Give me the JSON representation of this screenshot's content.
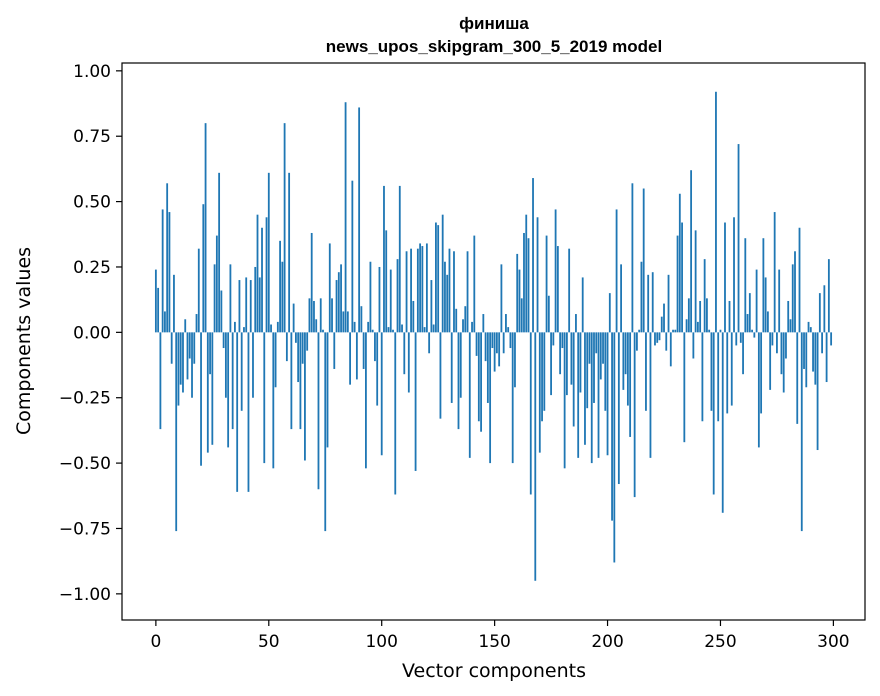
{
  "chart_data": {
    "type": "bar",
    "title_line1": "финиша",
    "title_line2": "news_upos_skipgram_300_5_2019 model",
    "xlabel": "Vector components",
    "ylabel": "Components values",
    "xlim": [
      -15,
      314
    ],
    "ylim": [
      -1.1,
      1.03
    ],
    "xticks": [
      0,
      50,
      100,
      150,
      200,
      250,
      300
    ],
    "xtick_labels": [
      "0",
      "50",
      "100",
      "150",
      "200",
      "250",
      "300"
    ],
    "yticks": [
      1.0,
      0.75,
      0.5,
      0.25,
      0.0,
      -0.25,
      -0.5,
      -0.75,
      -1.0
    ],
    "ytick_labels": [
      "1.00",
      "0.75",
      "0.50",
      "0.25",
      "0.00",
      "−0.25",
      "−0.50",
      "−0.75",
      "−1.00"
    ],
    "bar_color": "#1f77b4",
    "grid": false,
    "values": [
      0.24,
      0.17,
      -0.37,
      0.47,
      0.08,
      0.57,
      0.46,
      -0.12,
      0.22,
      -0.76,
      -0.28,
      -0.2,
      -0.23,
      0.05,
      -0.18,
      -0.1,
      -0.25,
      -0.12,
      0.07,
      0.32,
      -0.51,
      0.49,
      0.8,
      -0.46,
      -0.16,
      -0.43,
      0.26,
      0.37,
      0.61,
      0.16,
      -0.06,
      -0.25,
      -0.44,
      0.26,
      -0.37,
      0.04,
      -0.61,
      0.2,
      -0.3,
      0.02,
      0.21,
      -0.61,
      0.2,
      -0.25,
      0.25,
      0.45,
      0.21,
      0.4,
      -0.5,
      0.44,
      0.61,
      0.03,
      -0.52,
      -0.21,
      0.04,
      0.35,
      0.27,
      0.8,
      -0.11,
      0.61,
      -0.37,
      0.11,
      -0.04,
      -0.19,
      -0.37,
      -0.12,
      -0.49,
      -0.07,
      0.13,
      0.38,
      0.12,
      0.05,
      -0.6,
      0.13,
      0.01,
      -0.76,
      -0.44,
      0.34,
      0.13,
      -0.14,
      0.2,
      0.23,
      0.26,
      0.08,
      0.88,
      0.08,
      -0.2,
      0.58,
      0.04,
      -0.18,
      0.86,
      0.1,
      -0.14,
      -0.52,
      0.04,
      0.27,
      0.01,
      -0.11,
      -0.28,
      0.25,
      -0.47,
      0.56,
      0.39,
      0.02,
      0.24,
      0.01,
      -0.62,
      0.28,
      0.56,
      0.03,
      -0.16,
      0.31,
      -0.23,
      0.32,
      0.12,
      -0.53,
      0.32,
      0.34,
      0.33,
      0.02,
      0.34,
      -0.08,
      0.2,
      0.03,
      0.42,
      0.41,
      -0.33,
      0.45,
      0.27,
      0.22,
      0.32,
      -0.27,
      0.31,
      0.09,
      -0.37,
      -0.25,
      0.05,
      0.1,
      0.31,
      -0.48,
      0.04,
      0.37,
      -0.09,
      -0.34,
      -0.38,
      0.07,
      -0.11,
      -0.27,
      -0.5,
      -0.06,
      -0.15,
      -0.08,
      -0.13,
      0.26,
      -0.08,
      0.07,
      0.02,
      -0.06,
      -0.5,
      -0.21,
      0.3,
      0.24,
      0.13,
      0.38,
      0.45,
      0.36,
      -0.62,
      0.59,
      -0.95,
      0.44,
      -0.46,
      -0.34,
      -0.3,
      0.37,
      0.14,
      -0.24,
      -0.05,
      0.47,
      0.33,
      -0.16,
      -0.06,
      -0.52,
      -0.24,
      0.32,
      -0.2,
      -0.36,
      0.07,
      -0.48,
      -0.23,
      0.21,
      -0.43,
      -0.29,
      -0.12,
      -0.5,
      -0.27,
      -0.08,
      -0.48,
      -0.18,
      -0.12,
      -0.3,
      -0.47,
      0.15,
      -0.72,
      -0.88,
      0.47,
      -0.58,
      0.26,
      -0.22,
      -0.16,
      -0.28,
      -0.4,
      0.57,
      -0.63,
      -0.07,
      0.01,
      0.27,
      0.55,
      -0.3,
      0.22,
      -0.48,
      0.23,
      -0.05,
      -0.04,
      -0.03,
      0.06,
      0.11,
      -0.07,
      0.22,
      -0.13,
      0.01,
      0.01,
      0.37,
      0.53,
      0.42,
      -0.42,
      0.05,
      0.13,
      0.62,
      -0.1,
      0.39,
      0.04,
      0.12,
      -0.34,
      0.28,
      0.13,
      0.01,
      -0.3,
      -0.62,
      0.92,
      -0.34,
      0.01,
      -0.69,
      0.42,
      -0.31,
      0.12,
      -0.28,
      0.44,
      -0.05,
      0.72,
      -0.04,
      -0.16,
      0.36,
      0.07,
      0.15,
      0.01,
      -0.02,
      0.24,
      -0.44,
      -0.31,
      0.36,
      0.21,
      0.08,
      -0.22,
      -0.05,
      0.46,
      -0.08,
      0.24,
      -0.16,
      -0.23,
      -0.1,
      0.12,
      0.05,
      0.26,
      0.31,
      -0.35,
      0.4,
      -0.76,
      -0.14,
      -0.21,
      0.04,
      0.02,
      -0.15,
      -0.2,
      -0.45,
      0.15,
      -0.08,
      0.18,
      -0.19,
      0.28,
      -0.05
    ]
  }
}
